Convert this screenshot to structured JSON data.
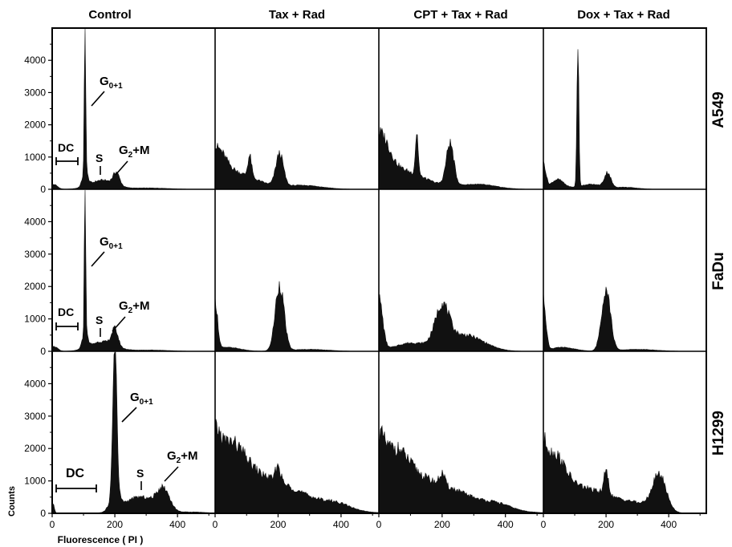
{
  "chart_data": {
    "type": "area",
    "ylabel": "Counts",
    "xlabel": "Fluorescence ( PI )",
    "xlim": [
      0,
      520
    ],
    "ylim": [
      0,
      5000
    ],
    "yticks": [
      0,
      1000,
      2000,
      3000,
      4000
    ],
    "xticks": [
      0,
      200,
      400
    ],
    "grid": false,
    "columns": [
      "Control",
      "Tax + Rad",
      "CPT + Tax + Rad",
      "Dox + Tax + Rad"
    ],
    "rows": [
      "A549",
      "FaDu",
      "H1299"
    ],
    "annotations": {
      "dc": "DC",
      "s": "S",
      "g01_main": "G",
      "g01_sub": "0+1",
      "g2m_pre": "G",
      "g2m_sub": "2",
      "g2m_post": "+M"
    },
    "panels": [
      {
        "row": "A549",
        "column": "Control",
        "components": [
          {
            "center": 5,
            "height": 150,
            "width": 12
          },
          {
            "center": 105,
            "height": 4900,
            "width": 2.2
          },
          {
            "center": 105,
            "height": 500,
            "width": 8
          },
          {
            "center": 160,
            "height": 280,
            "width": 40
          },
          {
            "center": 205,
            "height": 380,
            "width": 10
          },
          {
            "center": 310,
            "height": 40,
            "width": 60
          }
        ]
      },
      {
        "row": "A549",
        "column": "Tax + Rad",
        "components": [
          {
            "center": 0,
            "height": 950,
            "width": 30
          },
          {
            "center": 60,
            "height": 500,
            "width": 70
          },
          {
            "center": 110,
            "height": 650,
            "width": 6
          },
          {
            "center": 205,
            "height": 1000,
            "width": 12
          },
          {
            "center": 280,
            "height": 120,
            "width": 60
          }
        ]
      },
      {
        "row": "A549",
        "column": "CPT + Tax + Rad",
        "components": [
          {
            "center": 0,
            "height": 1300,
            "width": 30
          },
          {
            "center": 60,
            "height": 600,
            "width": 80
          },
          {
            "center": 120,
            "height": 1300,
            "width": 4.5
          },
          {
            "center": 225,
            "height": 1300,
            "width": 12
          },
          {
            "center": 310,
            "height": 150,
            "width": 60
          }
        ]
      },
      {
        "row": "A549",
        "column": "Dox + Tax + Rad",
        "components": [
          {
            "center": 0,
            "height": 800,
            "width": 8
          },
          {
            "center": 45,
            "height": 300,
            "width": 20
          },
          {
            "center": 110,
            "height": 4650,
            "width": 3
          },
          {
            "center": 150,
            "height": 150,
            "width": 40
          },
          {
            "center": 205,
            "height": 450,
            "width": 10
          },
          {
            "center": 260,
            "height": 60,
            "width": 40
          }
        ]
      },
      {
        "row": "FaDu",
        "column": "Control",
        "components": [
          {
            "center": 5,
            "height": 150,
            "width": 12
          },
          {
            "center": 105,
            "height": 4900,
            "width": 2.2
          },
          {
            "center": 105,
            "height": 500,
            "width": 8
          },
          {
            "center": 160,
            "height": 300,
            "width": 40
          },
          {
            "center": 200,
            "height": 520,
            "width": 10
          },
          {
            "center": 310,
            "height": 40,
            "width": 60
          }
        ]
      },
      {
        "row": "FaDu",
        "column": "Tax + Rad",
        "components": [
          {
            "center": 0,
            "height": 1500,
            "width": 8
          },
          {
            "center": 40,
            "height": 120,
            "width": 40
          },
          {
            "center": 205,
            "height": 2050,
            "width": 14
          },
          {
            "center": 300,
            "height": 60,
            "width": 60
          }
        ]
      },
      {
        "row": "FaDu",
        "column": "CPT + Tax + Rad",
        "components": [
          {
            "center": 0,
            "height": 1600,
            "width": 12
          },
          {
            "center": 100,
            "height": 250,
            "width": 50
          },
          {
            "center": 200,
            "height": 1200,
            "width": 22
          },
          {
            "center": 270,
            "height": 500,
            "width": 60
          }
        ]
      },
      {
        "row": "FaDu",
        "column": "Dox + Tax + Rad",
        "components": [
          {
            "center": 0,
            "height": 1600,
            "width": 8
          },
          {
            "center": 60,
            "height": 120,
            "width": 40
          },
          {
            "center": 200,
            "height": 1950,
            "width": 14
          },
          {
            "center": 300,
            "height": 60,
            "width": 60
          }
        ]
      },
      {
        "row": "H1299",
        "column": "Control",
        "components": [
          {
            "center": 3,
            "height": 300,
            "width": 4
          },
          {
            "center": 200,
            "height": 4900,
            "width": 6
          },
          {
            "center": 200,
            "height": 600,
            "width": 14
          },
          {
            "center": 280,
            "height": 500,
            "width": 50
          },
          {
            "center": 355,
            "height": 650,
            "width": 20
          },
          {
            "center": 450,
            "height": 40,
            "width": 40
          }
        ]
      },
      {
        "row": "H1299",
        "column": "Tax + Rad",
        "components": [
          {
            "center": 0,
            "height": 900,
            "width": 15
          },
          {
            "center": 40,
            "height": 1300,
            "width": 50
          },
          {
            "center": 130,
            "height": 1100,
            "width": 140
          },
          {
            "center": 200,
            "height": 500,
            "width": 8
          },
          {
            "center": 390,
            "height": 150,
            "width": 40
          }
        ]
      },
      {
        "row": "H1299",
        "column": "CPT + Tax + Rad",
        "components": [
          {
            "center": 0,
            "height": 900,
            "width": 15
          },
          {
            "center": 40,
            "height": 1200,
            "width": 50
          },
          {
            "center": 130,
            "height": 1000,
            "width": 140
          },
          {
            "center": 200,
            "height": 350,
            "width": 8
          },
          {
            "center": 380,
            "height": 120,
            "width": 40
          }
        ]
      },
      {
        "row": "H1299",
        "column": "Dox + Tax + Rad",
        "components": [
          {
            "center": 0,
            "height": 900,
            "width": 12
          },
          {
            "center": 30,
            "height": 1300,
            "width": 35
          },
          {
            "center": 110,
            "height": 800,
            "width": 90
          },
          {
            "center": 200,
            "height": 700,
            "width": 8
          },
          {
            "center": 370,
            "height": 1100,
            "width": 22
          },
          {
            "center": 290,
            "height": 250,
            "width": 60
          }
        ]
      }
    ]
  },
  "colors": {
    "fill": "#111111",
    "frame": "#000000",
    "background": "#ffffff"
  }
}
